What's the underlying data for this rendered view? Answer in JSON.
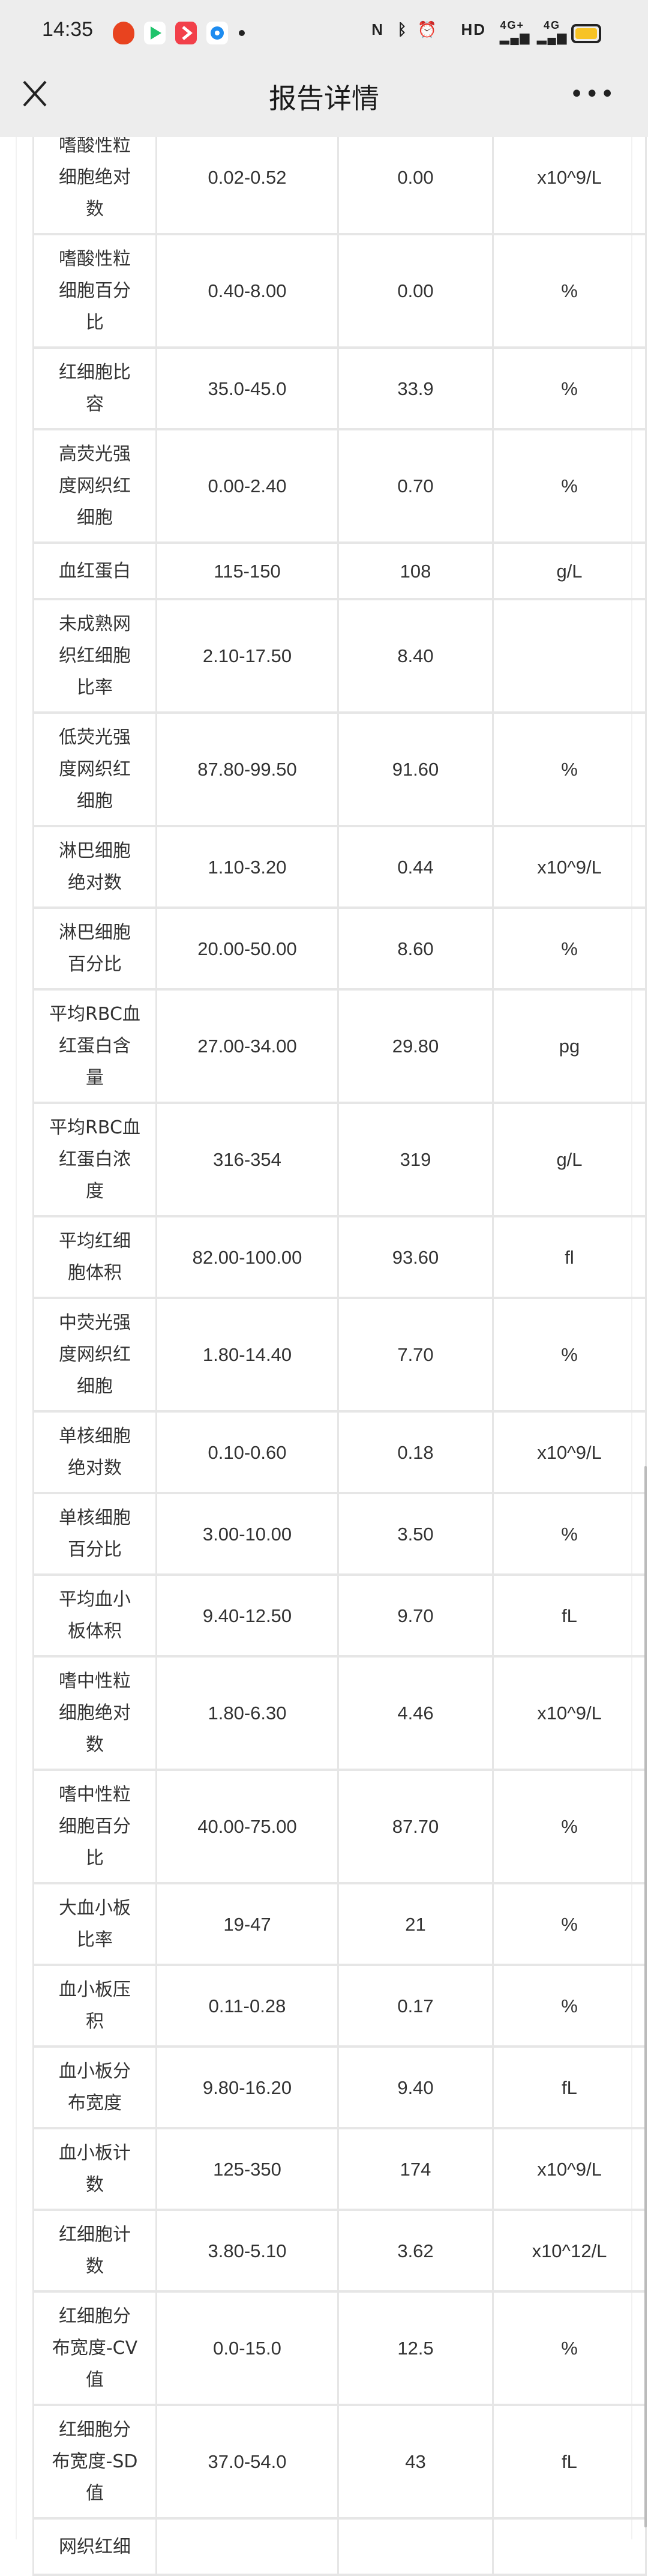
{
  "status_bar": {
    "time": "14:35",
    "icons": [
      "tomato-app-icon",
      "video-app-icon",
      "play-app-icon",
      "browser-app-icon",
      "nfc-icon",
      "bluetooth-icon",
      "alarm-icon",
      "hd-icon",
      "signal-4g-plus-icon",
      "signal-4g-icon",
      "battery-icon"
    ],
    "hd_label": "HD",
    "net1": "4G+",
    "net2": "4G",
    "battery_color": "#f7c325"
  },
  "nav": {
    "title": "报告详情",
    "close_icon": "close-icon",
    "more_label": "•••"
  },
  "table": {
    "rows": [
      {
        "name": [
          "嗜酸性粒",
          "细胞绝对",
          "数"
        ],
        "range": "0.02-0.52",
        "value": "0.00",
        "unit": "x10^9/L"
      },
      {
        "name": [
          "嗜酸性粒",
          "细胞百分",
          "比"
        ],
        "range": "0.40-8.00",
        "value": "0.00",
        "unit": "%"
      },
      {
        "name": [
          "红细胞比",
          "容"
        ],
        "range": "35.0-45.0",
        "value": "33.9",
        "unit": "%"
      },
      {
        "name": [
          "高荧光强",
          "度网织红",
          "细胞"
        ],
        "range": "0.00-2.40",
        "value": "0.70",
        "unit": "%"
      },
      {
        "name": [
          "血红蛋白"
        ],
        "range": "115-150",
        "value": "108",
        "unit": "g/L"
      },
      {
        "name": [
          "未成熟网",
          "织红细胞",
          "比率"
        ],
        "range": "2.10-17.50",
        "value": "8.40",
        "unit": ""
      },
      {
        "name": [
          "低荧光强",
          "度网织红",
          "细胞"
        ],
        "range": "87.80-99.50",
        "value": "91.60",
        "unit": "%"
      },
      {
        "name": [
          "淋巴细胞",
          "绝对数"
        ],
        "range": "1.10-3.20",
        "value": "0.44",
        "unit": "x10^9/L"
      },
      {
        "name": [
          "淋巴细胞",
          "百分比"
        ],
        "range": "20.00-50.00",
        "value": "8.60",
        "unit": "%"
      },
      {
        "name": [
          "平均RBC血",
          "红蛋白含",
          "量"
        ],
        "range": "27.00-34.00",
        "value": "29.80",
        "unit": "pg"
      },
      {
        "name": [
          "平均RBC血",
          "红蛋白浓",
          "度"
        ],
        "range": "316-354",
        "value": "319",
        "unit": "g/L"
      },
      {
        "name": [
          "平均红细",
          "胞体积"
        ],
        "range": "82.00-100.00",
        "value": "93.60",
        "unit": "fl"
      },
      {
        "name": [
          "中荧光强",
          "度网织红",
          "细胞"
        ],
        "range": "1.80-14.40",
        "value": "7.70",
        "unit": "%"
      },
      {
        "name": [
          "单核细胞",
          "绝对数"
        ],
        "range": "0.10-0.60",
        "value": "0.18",
        "unit": "x10^9/L"
      },
      {
        "name": [
          "单核细胞",
          "百分比"
        ],
        "range": "3.00-10.00",
        "value": "3.50",
        "unit": "%"
      },
      {
        "name": [
          "平均血小",
          "板体积"
        ],
        "range": "9.40-12.50",
        "value": "9.70",
        "unit": "fL"
      },
      {
        "name": [
          "嗜中性粒",
          "细胞绝对",
          "数"
        ],
        "range": "1.80-6.30",
        "value": "4.46",
        "unit": "x10^9/L"
      },
      {
        "name": [
          "嗜中性粒",
          "细胞百分",
          "比"
        ],
        "range": "40.00-75.00",
        "value": "87.70",
        "unit": "%"
      },
      {
        "name": [
          "大血小板",
          "比率"
        ],
        "range": "19-47",
        "value": "21",
        "unit": "%"
      },
      {
        "name": [
          "血小板压",
          "积"
        ],
        "range": "0.11-0.28",
        "value": "0.17",
        "unit": "%"
      },
      {
        "name": [
          "血小板分",
          "布宽度"
        ],
        "range": "9.80-16.20",
        "value": "9.40",
        "unit": "fL"
      },
      {
        "name": [
          "血小板计",
          "数"
        ],
        "range": "125-350",
        "value": "174",
        "unit": "x10^9/L"
      },
      {
        "name": [
          "红细胞计",
          "数"
        ],
        "range": "3.80-5.10",
        "value": "3.62",
        "unit": "x10^12/L"
      },
      {
        "name": [
          "红细胞分",
          "布宽度-CV",
          "值"
        ],
        "range": "0.0-15.0",
        "value": "12.5",
        "unit": "%"
      },
      {
        "name": [
          "红细胞分",
          "布宽度-SD",
          "值"
        ],
        "range": "37.0-54.0",
        "value": "43",
        "unit": "fL"
      },
      {
        "name": [
          "网织红细"
        ],
        "range": "",
        "value": "",
        "unit": ""
      }
    ]
  }
}
